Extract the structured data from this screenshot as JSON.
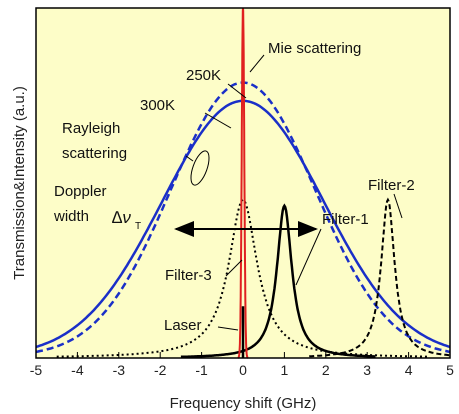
{
  "chart_data": {
    "type": "line",
    "title": "",
    "xlabel": "Frequency shift (GHz)",
    "ylabel": "Transmission&Intensity (a.u.)",
    "xlim": [
      -5,
      5
    ],
    "ylim": [
      0,
      1.15
    ],
    "x_ticks": [
      "-5",
      "-4",
      "-3",
      "-2",
      "-1",
      "0",
      "1",
      "2",
      "3",
      "4",
      "5"
    ],
    "grid": false,
    "background_color": "#fdfdc8",
    "series": [
      {
        "name": "250K",
        "style": "dashed",
        "color": "#1a2fc8",
        "x": [
          -5,
          -4,
          -3,
          -2,
          -1,
          0,
          1,
          2,
          3,
          4,
          5
        ],
        "y": [
          0.03,
          0.1,
          0.27,
          0.53,
          0.79,
          0.9,
          0.79,
          0.53,
          0.27,
          0.1,
          0.03
        ]
      },
      {
        "name": "300K",
        "style": "solid",
        "color": "#1a2fc8",
        "x": [
          -5,
          -4,
          -3,
          -2,
          -1,
          0,
          1,
          2,
          3,
          4,
          5
        ],
        "y": [
          0.04,
          0.14,
          0.31,
          0.55,
          0.76,
          0.84,
          0.76,
          0.55,
          0.31,
          0.14,
          0.04
        ]
      },
      {
        "name": "Mie scattering",
        "style": "solid",
        "color": "#e02020",
        "x": [
          -0.08,
          -0.04,
          0,
          0.04,
          0.08
        ],
        "y": [
          0.0,
          0.9,
          1.15,
          0.9,
          0.0
        ]
      },
      {
        "name": "Filter-1",
        "style": "solid",
        "color": "#000000",
        "x": [
          -0.5,
          0,
          0.5,
          0.8,
          1.0,
          1.2,
          1.5,
          2.0,
          2.5
        ],
        "y": [
          0.02,
          0.04,
          0.12,
          0.33,
          0.5,
          0.33,
          0.12,
          0.04,
          0.02
        ]
      },
      {
        "name": "Filter-2",
        "style": "dashed",
        "color": "#000000",
        "x": [
          2.0,
          2.5,
          3.0,
          3.3,
          3.5,
          3.7,
          4.0,
          4.5,
          5.0
        ],
        "y": [
          0.02,
          0.04,
          0.12,
          0.33,
          0.52,
          0.33,
          0.12,
          0.04,
          0.02
        ]
      },
      {
        "name": "Filter-3",
        "style": "dotted",
        "color": "#000000",
        "x": [
          -2.0,
          -1.0,
          -0.5,
          -0.2,
          0,
          0.2,
          0.5,
          1.0,
          2.0
        ],
        "y": [
          0.03,
          0.09,
          0.23,
          0.43,
          0.52,
          0.43,
          0.23,
          0.09,
          0.03
        ]
      },
      {
        "name": "Laser",
        "style": "solid",
        "color": "#000000",
        "x": [
          0,
          0
        ],
        "y": [
          0,
          0.17
        ]
      }
    ],
    "annotations": {
      "mie": "Mie scattering",
      "t250": "250K",
      "t300": "300K",
      "rayleigh_1": "Rayleigh",
      "rayleigh_2": "scattering",
      "doppler_1": "Doppler",
      "doppler_2": "width",
      "delta_nu": "∆ν",
      "delta_nu_sub": "T",
      "filter1": "Filter-1",
      "filter2": "Filter-2",
      "filter3": "Filter-3",
      "laser": "Laser"
    }
  }
}
